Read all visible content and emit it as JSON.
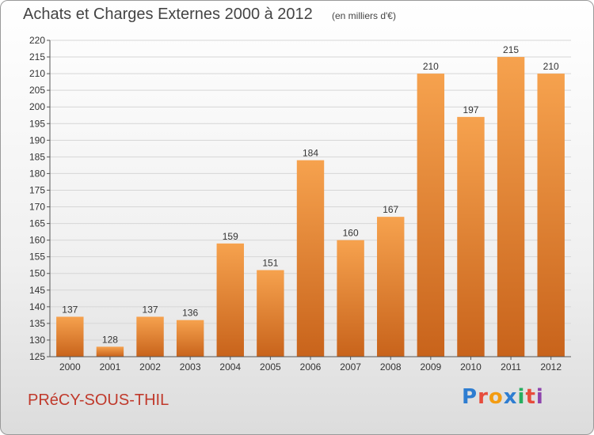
{
  "header": {
    "title": "Achats et Charges Externes 2000 à 2012",
    "subtitle": "(en milliers d'€)"
  },
  "footer": {
    "commune": "PRéCY-SOUS-THIL",
    "brand": "Proxiti",
    "brand_colors": [
      "#2e7dd1",
      "#e74c3c",
      "#f39c12",
      "#2e7dd1",
      "#27ae60",
      "#e74c3c",
      "#8e44ad"
    ]
  },
  "colors": {
    "bar_top": "#f6a24e",
    "bar_bottom": "#c8631b",
    "grid": "#d6d6d6",
    "axis": "#555555"
  },
  "chart_data": {
    "type": "bar",
    "title": "Achats et Charges Externes 2000 à 2012",
    "subtitle": "(en milliers d'€)",
    "categories": [
      "2000",
      "2001",
      "2002",
      "2003",
      "2004",
      "2005",
      "2006",
      "2007",
      "2008",
      "2009",
      "2010",
      "2011",
      "2012"
    ],
    "values": [
      137,
      128,
      137,
      136,
      159,
      151,
      184,
      160,
      167,
      210,
      197,
      215,
      210
    ],
    "ylim": [
      125,
      220
    ],
    "ytick_step": 5,
    "grid": true,
    "xlabel": "",
    "ylabel": ""
  }
}
